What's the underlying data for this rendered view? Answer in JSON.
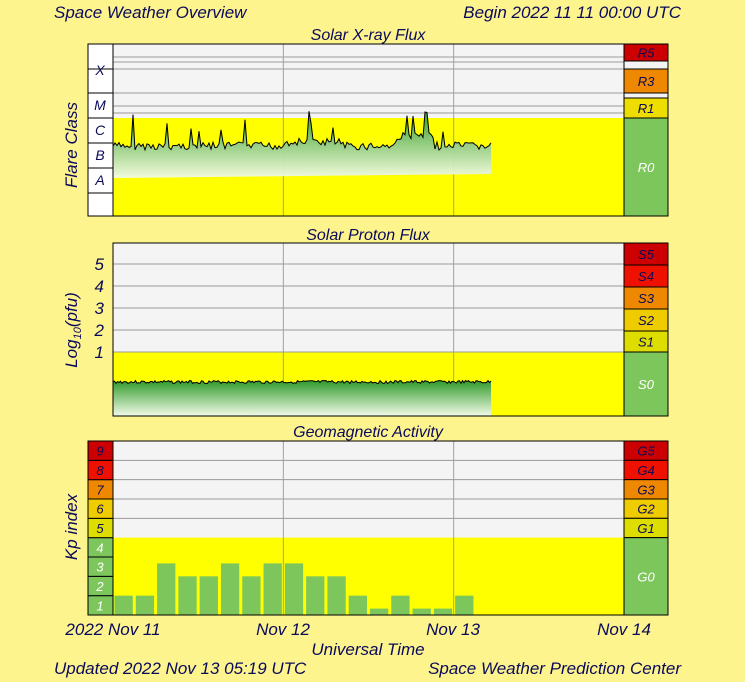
{
  "header": {
    "title": "Space Weather Overview",
    "begin": "Begin 2022 11 11 00:00 UTC"
  },
  "footer": {
    "updated": "Updated 2022 Nov 13 05:19 UTC",
    "center": "Space Weather Prediction Center"
  },
  "colors": {
    "background": "#fdf48e",
    "quiet_yellow": "#ffff00",
    "grid_bg": "#f4f4f4",
    "green": "#7dc65b",
    "text": "#0a0a5a"
  },
  "chart_data": [
    {
      "type": "area",
      "title": "Solar X-ray Flux",
      "ylabel": "Flare Class",
      "ytick_labels": [
        "A",
        "B",
        "C",
        "M",
        "X"
      ],
      "ylim": [
        "A",
        "X"
      ],
      "scale_labels": [
        "R5",
        "R3",
        "R1",
        "R0"
      ],
      "scale_colors": [
        "#cc0000",
        "#ee8800",
        "#eedd00",
        "#7dc65b"
      ],
      "data_coverage": [
        "2022 Nov 11 00:00",
        "2022 Nov 13 05:19"
      ],
      "approx_level_class": "B-C"
    },
    {
      "type": "area",
      "title": "Solar Proton Flux",
      "ylabel": "Log10(pfu)",
      "ytick_labels": [
        "1",
        "2",
        "3",
        "4",
        "5"
      ],
      "scale_labels": [
        "S5",
        "S4",
        "S3",
        "S2",
        "S1",
        "S0"
      ],
      "scale_colors": [
        "#cc0000",
        "#ee1100",
        "#ee8800",
        "#eecc00",
        "#dddd00",
        "#7dc65b"
      ],
      "data_coverage": [
        "2022 Nov 11 00:00",
        "2022 Nov 13 05:19"
      ],
      "approx_log_pfu": -0.5
    },
    {
      "type": "bar",
      "title": "Geomagnetic Activity",
      "ylabel": "Kp index",
      "ytick_labels": [
        "1",
        "2",
        "3",
        "4",
        "5",
        "6",
        "7",
        "8",
        "9"
      ],
      "ylim": [
        0,
        9
      ],
      "scale_labels": [
        "G5",
        "G4",
        "G3",
        "G2",
        "G1",
        "G0"
      ],
      "scale_colors": [
        "#cc0000",
        "#ee1100",
        "#ee8800",
        "#eecc00",
        "#dddd00",
        "#7dc65b"
      ],
      "interval_hours": 3,
      "kp_values": [
        1.0,
        1.0,
        2.67,
        2.0,
        2.0,
        2.67,
        2.0,
        2.67,
        2.67,
        2.0,
        2.0,
        1.0,
        0.33,
        1.0,
        0.33,
        0.33,
        1.0
      ]
    }
  ],
  "x_axis": {
    "label": "Universal Time",
    "tick_labels": [
      "2022 Nov 11",
      "Nov 12",
      "Nov 13",
      "Nov 14"
    ]
  }
}
